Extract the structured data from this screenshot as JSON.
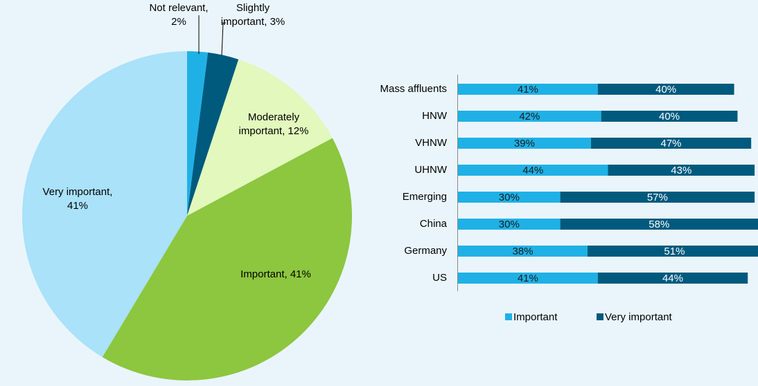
{
  "chart_data": [
    {
      "type": "pie",
      "values": [
        2,
        3,
        12,
        41,
        41
      ],
      "value_labels": [
        "Not relevant, 2%",
        "Slightly important, 3%",
        "Moderately important, 12%",
        "Important, 41%",
        "Very important, 41%"
      ],
      "colors": [
        "#1fb1e6",
        "#005a7e",
        "#e2f8bc",
        "#8dc63f",
        "#a9e2f9"
      ]
    },
    {
      "type": "stacked_barh",
      "categories": [
        "Mass affluents",
        "HNW",
        "VHNW",
        "UHNW",
        "Emerging",
        "China",
        "Germany",
        "US"
      ],
      "series": [
        {
          "name": "Important",
          "color": "#1fb1e6",
          "values": [
            41,
            42,
            39,
            44,
            30,
            30,
            38,
            41
          ],
          "value_labels": [
            "41%",
            "42%",
            "39%",
            "44%",
            "30%",
            "30%",
            "38%",
            "41%"
          ]
        },
        {
          "name": "Very important",
          "color": "#005a7e",
          "values": [
            40,
            40,
            47,
            43,
            57,
            58,
            51,
            44
          ],
          "value_labels": [
            "40%",
            "40%",
            "47%",
            "43%",
            "57%",
            "58%",
            "51%",
            "44%"
          ]
        }
      ],
      "xlim": [
        0,
        88
      ],
      "legend": "bottom"
    }
  ]
}
